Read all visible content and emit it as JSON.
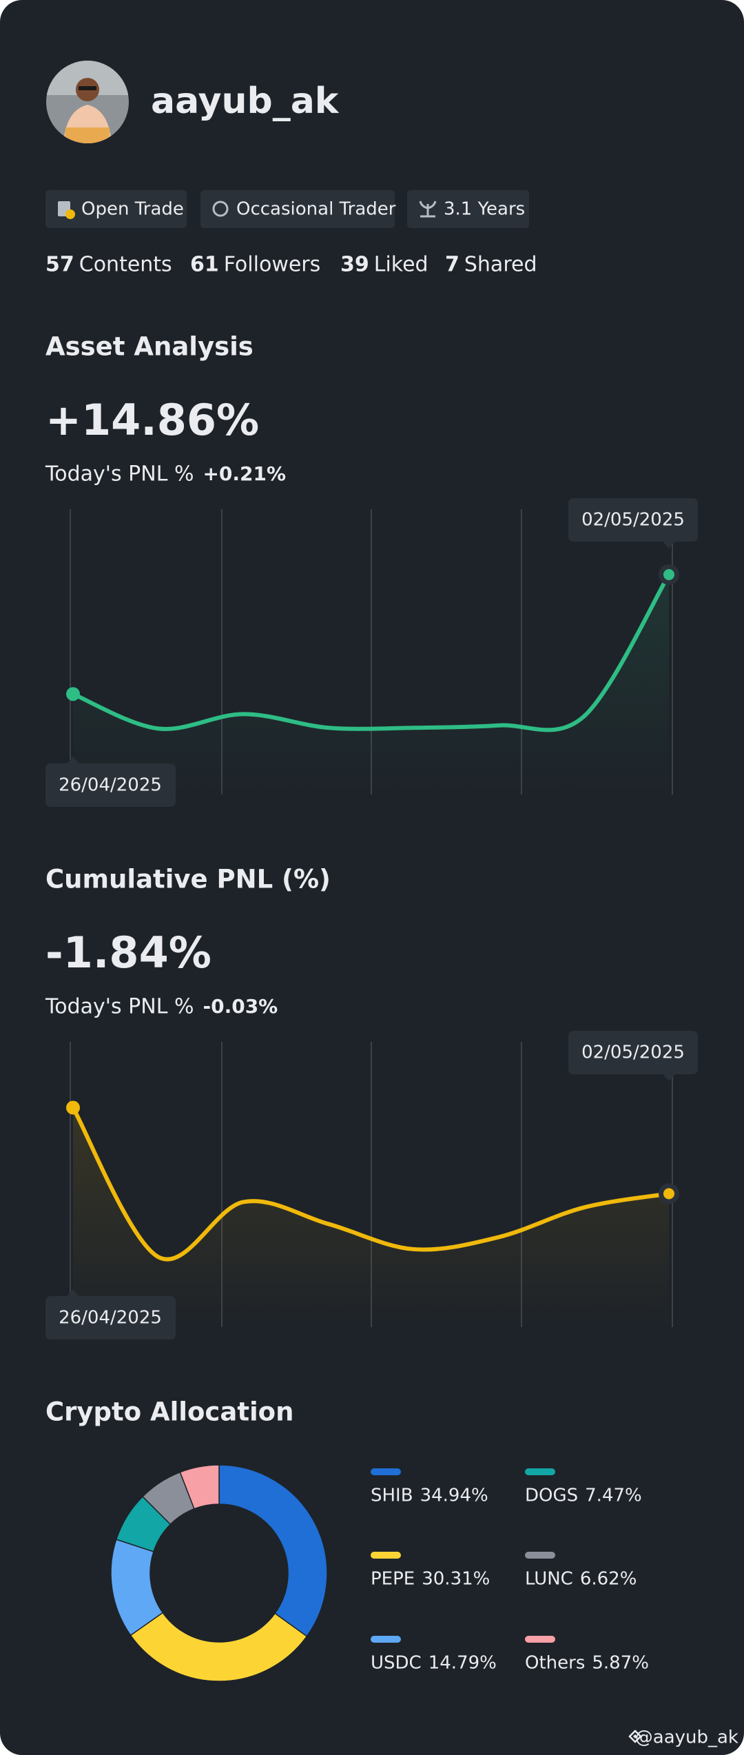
{
  "profile": {
    "username": "aayub_ak",
    "tags": [
      "Open Trade",
      "Occasional Trader",
      "3.1 Years"
    ],
    "stats": [
      {
        "count": 57,
        "label": "Contents"
      },
      {
        "count": 61,
        "label": "Followers"
      },
      {
        "count": 39,
        "label": "Liked"
      },
      {
        "count": 7,
        "label": "Shared"
      }
    ]
  },
  "chart_data": [
    {
      "type": "line",
      "title": "Asset Analysis",
      "headline": "+14.86%",
      "today_label": "Today's PNL %",
      "today_value": "+0.21%",
      "accent": "#2ebd85",
      "categories": [
        "26/04/2025",
        null,
        null,
        null,
        null,
        null,
        null,
        "02/05/2025"
      ],
      "series": [
        {
          "color": "#2ebd85",
          "values": [
            0,
            -4.3,
            -2.5,
            -4.2,
            -4.2,
            -3.9,
            -2.8,
            14.86
          ]
        }
      ],
      "ylim": [
        -12.5,
        23
      ]
    },
    {
      "type": "line",
      "title": "Cumulative PNL (%)",
      "headline": "-1.84%",
      "today_label": "Today's PNL %",
      "today_value": "-0.03%",
      "accent": "#f6465d",
      "categories": [
        "26/04/2025",
        null,
        null,
        null,
        null,
        null,
        null,
        "02/05/2025"
      ],
      "series": [
        {
          "color": "#f0b90b",
          "values": [
            6.0,
            -7.6,
            -2.6,
            -4.6,
            -6.9,
            -5.8,
            -3.1,
            -1.84
          ]
        }
      ],
      "ylim": [
        -14,
        12
      ]
    },
    {
      "type": "donut",
      "title": "Crypto Allocation",
      "categories": [
        "SHIB",
        "PEPE",
        "USDC",
        "DOGS",
        "LUNC",
        "Others"
      ],
      "values": [
        34.94,
        30.31,
        14.79,
        7.47,
        6.62,
        5.87
      ],
      "value_labels": [
        "34.94%",
        "30.31%",
        "14.79%",
        "7.47%",
        "6.62%",
        "5.87%"
      ],
      "colors": [
        "#1f6fd6",
        "#fcd535",
        "#5fa8f5",
        "#12a6a6",
        "#8a8f99",
        "#f7a0a6"
      ]
    }
  ],
  "watermark": "@aayub_ak"
}
